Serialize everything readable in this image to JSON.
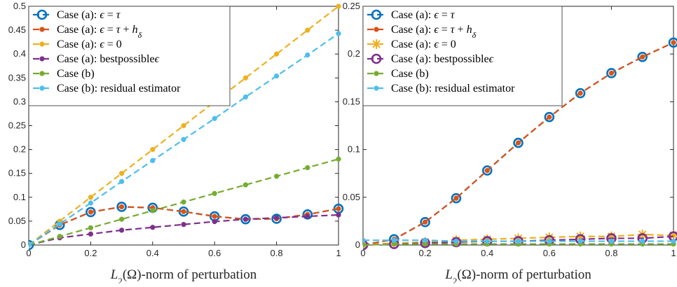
{
  "chart_data": [
    {
      "type": "line",
      "x": [
        0,
        0.1,
        0.2,
        0.3,
        0.4,
        0.5,
        0.6,
        0.7,
        0.8,
        0.9,
        1
      ],
      "xlim": [
        0,
        1
      ],
      "ylim": [
        0,
        0.5
      ],
      "xticks": [
        "0",
        "0.2",
        "0.4",
        "0.6",
        "0.8",
        "1"
      ],
      "yticks": [
        "0",
        "0.05",
        "0.1",
        "0.15",
        "0.2",
        "0.25",
        "0.3",
        "0.35",
        "0.4",
        "0.45",
        "0.5"
      ],
      "xlabel": "L₂(Ω)-norm of perturbation",
      "ylabel": "",
      "grid": false,
      "legend_position": "top-left",
      "series": [
        {
          "name": "Case (a): ϵ = τ",
          "color": "#0072BD",
          "marker": "circle-open",
          "values": [
            0.0,
            0.042,
            0.069,
            0.08,
            0.078,
            0.07,
            0.06,
            0.054,
            0.055,
            0.064,
            0.076
          ]
        },
        {
          "name": "Case (a): ϵ = τ + hδ",
          "color": "#D95319",
          "marker": "dot",
          "values": [
            0.0,
            0.042,
            0.069,
            0.08,
            0.078,
            0.07,
            0.06,
            0.054,
            0.055,
            0.064,
            0.076
          ]
        },
        {
          "name": "Case (a): ϵ = 0",
          "color": "#EDB120",
          "marker": "dot",
          "values": [
            0.0,
            0.05,
            0.1,
            0.15,
            0.2,
            0.25,
            0.3,
            0.35,
            0.4,
            0.45,
            0.5
          ]
        },
        {
          "name": "Case (a): best possible ϵ",
          "color": "#7E2F8E",
          "marker": "dot",
          "values": [
            0.0,
            0.015,
            0.023,
            0.031,
            0.037,
            0.043,
            0.049,
            0.054,
            0.057,
            0.06,
            0.063
          ]
        },
        {
          "name": "Case (b)",
          "color": "#77AC30",
          "marker": "dot",
          "values": [
            0.0,
            0.018,
            0.036,
            0.054,
            0.072,
            0.09,
            0.108,
            0.126,
            0.144,
            0.162,
            0.18
          ]
        },
        {
          "name": "Case (b): residual estimator",
          "color": "#4DBEEE",
          "marker": "dot",
          "values": [
            0.0,
            0.044,
            0.088,
            0.133,
            0.177,
            0.221,
            0.265,
            0.31,
            0.354,
            0.398,
            0.443
          ]
        }
      ]
    },
    {
      "type": "line",
      "x": [
        0,
        0.1,
        0.2,
        0.3,
        0.4,
        0.5,
        0.6,
        0.7,
        0.8,
        0.9,
        1
      ],
      "xlim": [
        0,
        1
      ],
      "ylim": [
        0,
        0.25
      ],
      "xticks": [
        "0",
        "0.2",
        "0.4",
        "0.6",
        "0.8",
        "1"
      ],
      "yticks": [
        "0",
        "0.05",
        "0.1",
        "0.15",
        "0.2",
        "0.25"
      ],
      "xlabel": "L₂(Ω)-norm of perturbation",
      "ylabel": "",
      "grid": false,
      "legend_position": "top-left",
      "series": [
        {
          "name": "Case (a): ϵ = τ",
          "color": "#0072BD",
          "marker": "circle-open",
          "values": [
            0.0,
            0.006,
            0.024,
            0.049,
            0.078,
            0.107,
            0.134,
            0.159,
            0.18,
            0.197,
            0.212
          ]
        },
        {
          "name": "Case (a): ϵ = τ + hδ",
          "color": "#D95319",
          "marker": "dot",
          "values": [
            0.0,
            0.006,
            0.024,
            0.049,
            0.078,
            0.107,
            0.134,
            0.159,
            0.18,
            0.197,
            0.212
          ]
        },
        {
          "name": "Case (a): ϵ = 0",
          "color": "#EDB120",
          "marker": "asterisk",
          "values": [
            0.0,
            0.002,
            0.003,
            0.005,
            0.006,
            0.007,
            0.008,
            0.009,
            0.009,
            0.011,
            0.01
          ]
        },
        {
          "name": "Case (a): best possible ϵ",
          "color": "#7E2F8E",
          "marker": "circle-open",
          "values": [
            0.0,
            0.001,
            0.002,
            0.003,
            0.004,
            0.004,
            0.005,
            0.006,
            0.007,
            0.007,
            0.009
          ]
        },
        {
          "name": "Case (b)",
          "color": "#77AC30",
          "marker": "dot",
          "values": [
            0.0,
            0.001,
            0.001,
            0.001,
            0.001,
            0.001,
            0.001,
            0.001,
            0.001,
            0.001,
            0.001
          ]
        },
        {
          "name": "Case (b): residual estimator",
          "color": "#4DBEEE",
          "marker": "dot",
          "values": [
            0.005,
            0.005,
            0.005,
            0.004,
            0.004,
            0.004,
            0.004,
            0.004,
            0.004,
            0.004,
            0.004
          ]
        }
      ]
    }
  ]
}
